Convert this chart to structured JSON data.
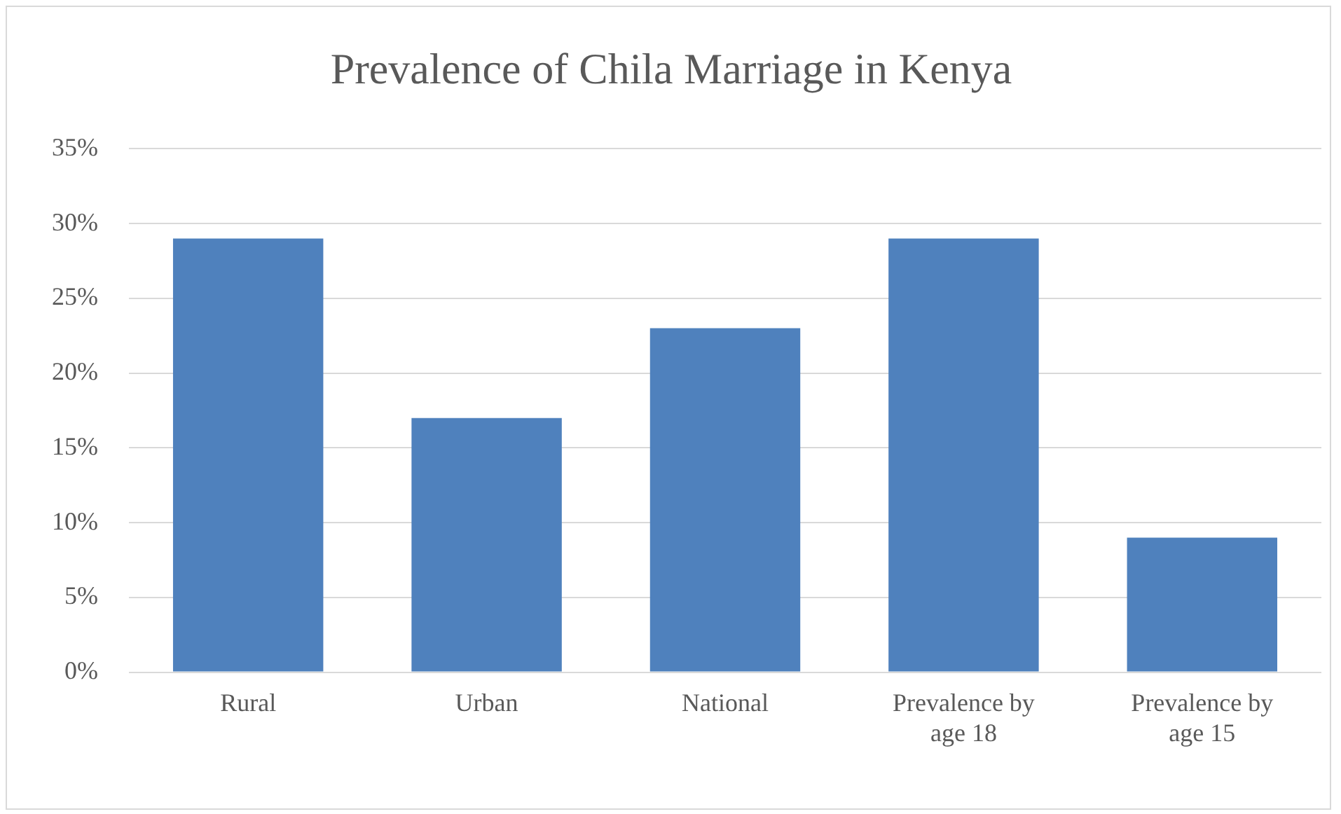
{
  "chart_data": {
    "type": "bar",
    "title": "Prevalence of Chila Marriage in Kenya",
    "categories": [
      "Rural",
      "Urban",
      "National",
      "Prevalence by age 18",
      "Prevalence by age 15"
    ],
    "values": [
      29,
      17,
      23,
      29,
      9
    ],
    "color": "#4f81bd",
    "ylim": [
      0,
      35
    ],
    "yticks": [
      {
        "value": 0,
        "label": "0%"
      },
      {
        "value": 5,
        "label": "5%"
      },
      {
        "value": 10,
        "label": "10%"
      },
      {
        "value": 15,
        "label": "15%"
      },
      {
        "value": 20,
        "label": "20%"
      },
      {
        "value": 25,
        "label": "25%"
      },
      {
        "value": 30,
        "label": "30%"
      },
      {
        "value": 35,
        "label": "35%"
      }
    ],
    "grid": "y"
  }
}
